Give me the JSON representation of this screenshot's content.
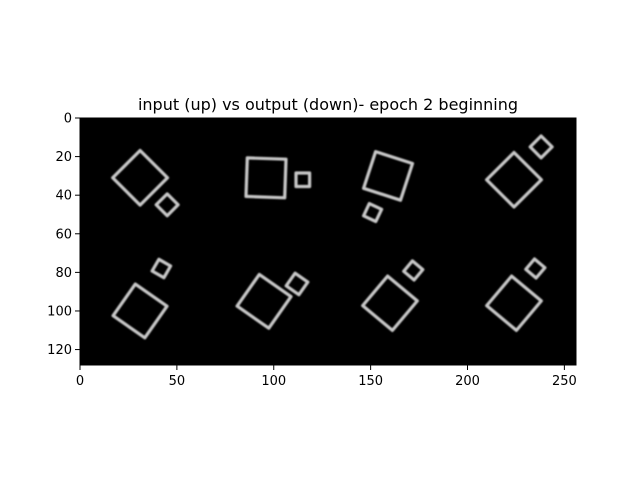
{
  "chart_data": {
    "type": "heatmap",
    "title": "input (up) vs output (down)- epoch 2 beginning",
    "xlabel": "",
    "ylabel": "",
    "xlim": [
      0,
      256
    ],
    "ylim": [
      128,
      0
    ],
    "xticks": [
      "0",
      "50",
      "100",
      "150",
      "200",
      "250"
    ],
    "yticks": [
      "0",
      "20",
      "40",
      "60",
      "80",
      "100",
      "120"
    ],
    "background_color": "#000000",
    "shape_color": "#c8c8c8",
    "colormap": "gray",
    "image_grid": {
      "rows": 2,
      "cols": 4,
      "cell_size": 64
    },
    "squares": [
      {
        "row": "input",
        "cx": 31,
        "cy": 31,
        "side": 20,
        "angle": 45
      },
      {
        "row": "input",
        "cx": 45,
        "cy": 45,
        "side": 8,
        "angle": 45
      },
      {
        "row": "input",
        "cx": 96,
        "cy": 31,
        "side": 20,
        "angle": 2
      },
      {
        "row": "input",
        "cx": 115,
        "cy": 32,
        "side": 7,
        "angle": 0
      },
      {
        "row": "input",
        "cx": 159,
        "cy": 30,
        "side": 20,
        "angle": 18
      },
      {
        "row": "input",
        "cx": 151,
        "cy": 49,
        "side": 7,
        "angle": 25
      },
      {
        "row": "input",
        "cx": 224,
        "cy": 32,
        "side": 20,
        "angle": 45
      },
      {
        "row": "input",
        "cx": 238,
        "cy": 15,
        "side": 8,
        "angle": 45
      },
      {
        "row": "output",
        "cx": 31,
        "cy": 100,
        "side": 20,
        "angle": 35
      },
      {
        "row": "output",
        "cx": 42,
        "cy": 78,
        "side": 7,
        "angle": 30
      },
      {
        "row": "output",
        "cx": 95,
        "cy": 95,
        "side": 20,
        "angle": 35
      },
      {
        "row": "output",
        "cx": 112,
        "cy": 86,
        "side": 8,
        "angle": 35
      },
      {
        "row": "output",
        "cx": 160,
        "cy": 96,
        "side": 20,
        "angle": 40
      },
      {
        "row": "output",
        "cx": 172,
        "cy": 79,
        "side": 7,
        "angle": 40
      },
      {
        "row": "output",
        "cx": 224,
        "cy": 96,
        "side": 20,
        "angle": 40
      },
      {
        "row": "output",
        "cx": 235,
        "cy": 78,
        "side": 7,
        "angle": 40
      }
    ]
  }
}
